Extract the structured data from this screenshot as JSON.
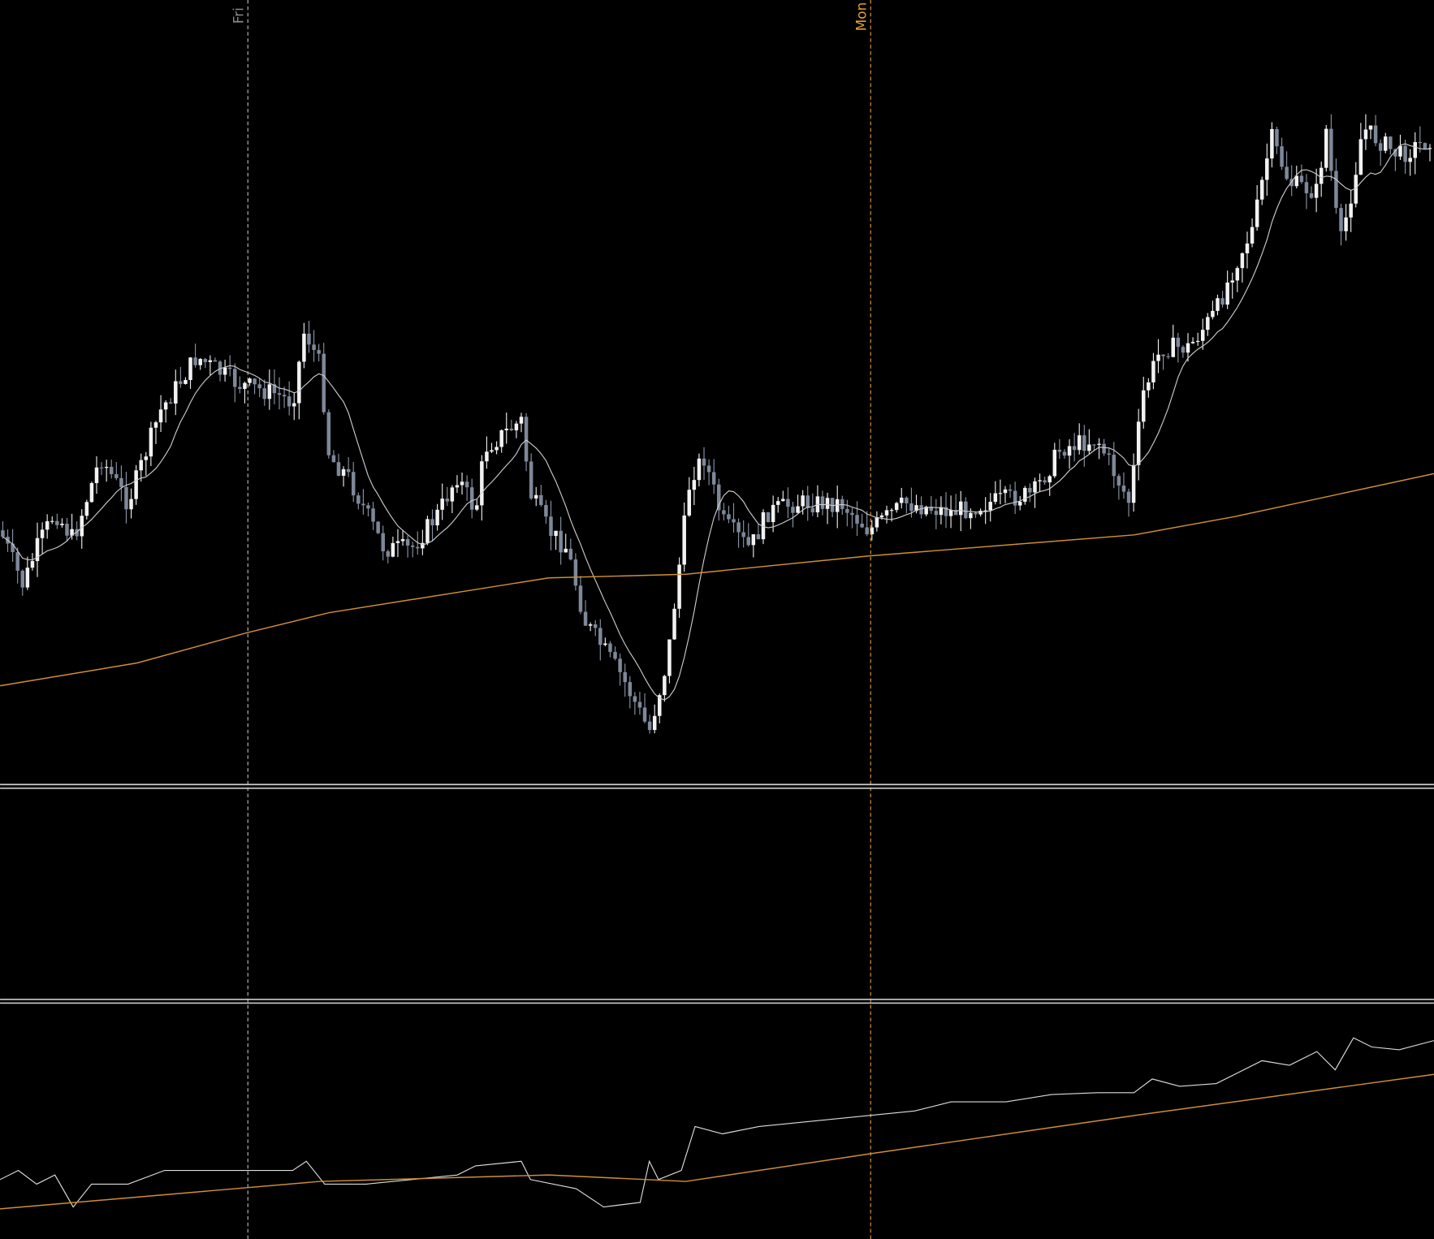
{
  "separators": {
    "friday": "Fri",
    "monday": "Mon"
  }
}
